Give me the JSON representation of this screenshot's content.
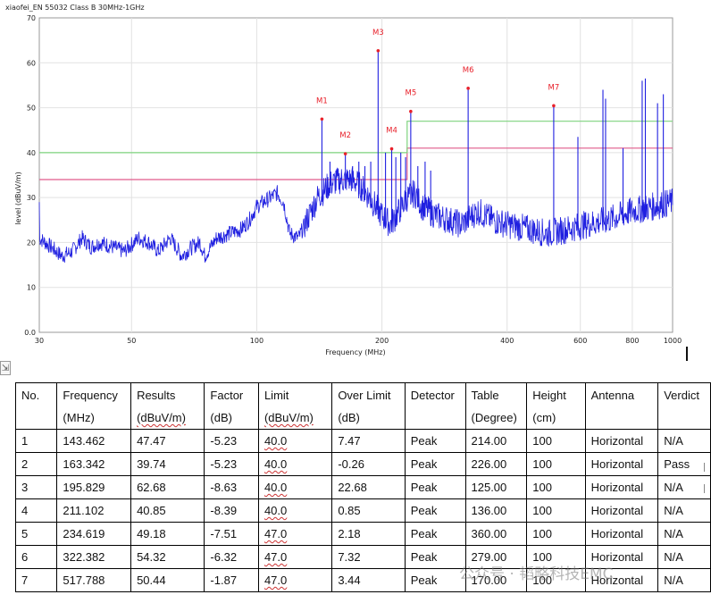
{
  "chart_data": {
    "type": "line",
    "title": "xiaofei_EN 55032 Class B 30MHz-1GHz",
    "xlabel": "Frequency (MHz)",
    "ylabel": "level (dBuV/m)",
    "x_scale": "log",
    "xlim": [
      30,
      1000
    ],
    "ylim": [
      0,
      70
    ],
    "x_ticks": [
      "30",
      "50",
      "100",
      "200",
      "400",
      "600",
      "800",
      "1000"
    ],
    "y_ticks": [
      "0.0",
      "10",
      "20",
      "30",
      "40",
      "50",
      "60",
      "70"
    ],
    "grid": true,
    "series": [
      {
        "color": "#1f1fe0",
        "noise_floor": [
          [
            30,
            21
          ],
          [
            32,
            19
          ],
          [
            34,
            17
          ],
          [
            36,
            18
          ],
          [
            38,
            21
          ],
          [
            40,
            19
          ],
          [
            42,
            20
          ],
          [
            45,
            19
          ],
          [
            48,
            18
          ],
          [
            52,
            21
          ],
          [
            55,
            20
          ],
          [
            58,
            18
          ],
          [
            62,
            21
          ],
          [
            66,
            17
          ],
          [
            70,
            19
          ],
          [
            73,
            20
          ],
          [
            75,
            17
          ],
          [
            80,
            21
          ],
          [
            86,
            22
          ],
          [
            92,
            23
          ],
          [
            96,
            25
          ],
          [
            100,
            28
          ],
          [
            108,
            30
          ],
          [
            112,
            31
          ],
          [
            116,
            29
          ],
          [
            120,
            22
          ],
          [
            126,
            21
          ],
          [
            132,
            25
          ],
          [
            140,
            30
          ],
          [
            150,
            33
          ],
          [
            160,
            34
          ],
          [
            170,
            34
          ],
          [
            180,
            32
          ],
          [
            190,
            29
          ],
          [
            200,
            26
          ],
          [
            210,
            24
          ],
          [
            220,
            27
          ],
          [
            230,
            30
          ],
          [
            240,
            31
          ],
          [
            250,
            28
          ],
          [
            270,
            26
          ],
          [
            290,
            25
          ],
          [
            310,
            24
          ],
          [
            340,
            27
          ],
          [
            370,
            25
          ],
          [
            400,
            24
          ],
          [
            450,
            23
          ],
          [
            500,
            22
          ],
          [
            560,
            23
          ],
          [
            620,
            24
          ],
          [
            700,
            25
          ],
          [
            800,
            27
          ],
          [
            900,
            28
          ],
          [
            1000,
            29
          ]
        ],
        "spikes": [
          [
            143.462,
            47.47
          ],
          [
            163.342,
            39.74
          ],
          [
            195.829,
            62.68
          ],
          [
            211.102,
            40.85
          ],
          [
            234.619,
            49.18
          ],
          [
            322.382,
            54.32
          ],
          [
            517.788,
            50.44
          ],
          [
            592,
            43.5
          ],
          [
            680,
            54
          ],
          [
            690,
            52
          ],
          [
            760,
            41
          ],
          [
            845,
            56
          ],
          [
            860,
            56.5
          ],
          [
            920,
            51
          ],
          [
            950,
            53
          ],
          [
            150,
            38
          ],
          [
            155,
            36
          ],
          [
            170,
            37
          ],
          [
            176,
            38
          ],
          [
            182,
            37
          ],
          [
            188,
            38
          ],
          [
            204,
            40
          ],
          [
            216,
            39
          ],
          [
            222,
            40
          ],
          [
            228,
            39
          ],
          [
            244,
            37
          ],
          [
            254,
            38
          ],
          [
            262,
            36
          ]
        ]
      }
    ],
    "limit_lines": [
      {
        "name": "limit",
        "color": "#e05a8a",
        "points": [
          [
            30,
            34
          ],
          [
            230,
            34
          ],
          [
            230,
            41
          ],
          [
            1000,
            41
          ]
        ]
      },
      {
        "name": "limit-upper",
        "color": "#7ed37e",
        "points": [
          [
            30,
            40
          ],
          [
            230,
            40
          ],
          [
            230,
            47
          ],
          [
            1000,
            47
          ]
        ]
      }
    ],
    "markers": [
      {
        "label": "M1",
        "x": 143.462,
        "y": 47.47
      },
      {
        "label": "M2",
        "x": 163.342,
        "y": 39.74
      },
      {
        "label": "M3",
        "x": 195.829,
        "y": 62.68
      },
      {
        "label": "M4",
        "x": 211.102,
        "y": 40.85
      },
      {
        "label": "M5",
        "x": 234.619,
        "y": 49.18
      },
      {
        "label": "M6",
        "x": 322.382,
        "y": 54.32
      },
      {
        "label": "M7",
        "x": 517.788,
        "y": 50.44
      }
    ]
  },
  "table": {
    "headers": [
      [
        "No.",
        ""
      ],
      [
        "Frequency",
        "(MHz)"
      ],
      [
        "Results",
        "(dBuV/m)"
      ],
      [
        "Factor",
        "(dB)"
      ],
      [
        "Limit",
        "(dBuV/m)"
      ],
      [
        "Over Limit",
        "(dB)"
      ],
      [
        "Detector",
        ""
      ],
      [
        "Table",
        "(Degree)"
      ],
      [
        "Height",
        "(cm)"
      ],
      [
        "Antenna",
        ""
      ],
      [
        "Verdict",
        ""
      ]
    ],
    "rows": [
      [
        "1",
        "143.462",
        "47.47",
        "-5.23",
        "40.0",
        "7.47",
        "Peak",
        "214.00",
        "100",
        "Horizontal",
        "N/A"
      ],
      [
        "2",
        "163.342",
        "39.74",
        "-5.23",
        "40.0",
        "-0.26",
        "Peak",
        "226.00",
        "100",
        "Horizontal",
        "Pass"
      ],
      [
        "3",
        "195.829",
        "62.68",
        "-8.63",
        "40.0",
        "22.68",
        "Peak",
        "125.00",
        "100",
        "Horizontal",
        "N/A"
      ],
      [
        "4",
        "211.102",
        "40.85",
        "-8.39",
        "40.0",
        "0.85",
        "Peak",
        "136.00",
        "100",
        "Horizontal",
        "N/A"
      ],
      [
        "5",
        "234.619",
        "49.18",
        "-7.51",
        "47.0",
        "2.18",
        "Peak",
        "360.00",
        "100",
        "Horizontal",
        "N/A"
      ],
      [
        "6",
        "322.382",
        "54.32",
        "-6.32",
        "47.0",
        "7.32",
        "Peak",
        "279.00",
        "100",
        "Horizontal",
        "N/A"
      ],
      [
        "7",
        "517.788",
        "50.44",
        "-1.87",
        "47.0",
        "3.44",
        "Peak",
        "170.00",
        "100",
        "Horizontal",
        "N/A"
      ]
    ]
  },
  "watermark": "公众号 · 韬略科技EMC"
}
